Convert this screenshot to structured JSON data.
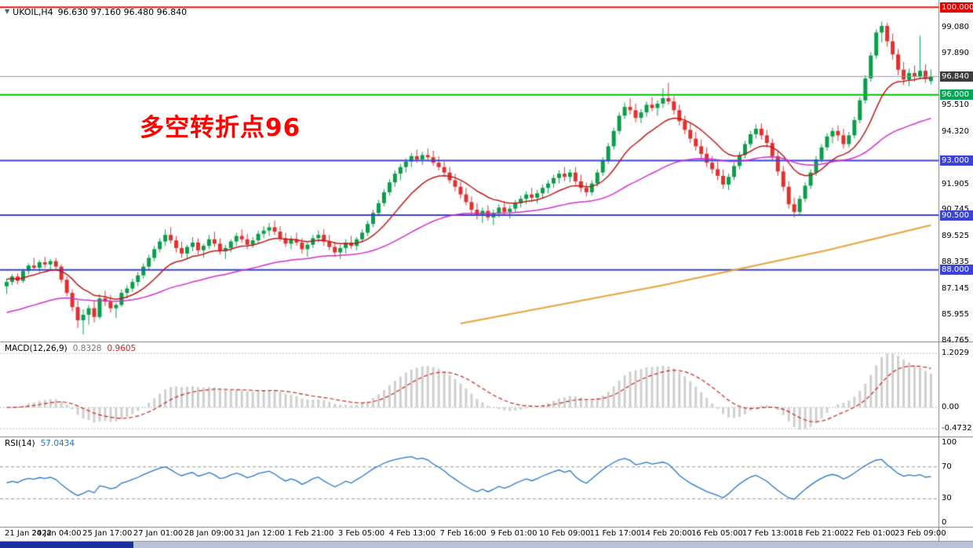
{
  "header": {
    "icon": "▼",
    "symbol_period": "UKOIL,H4",
    "ohlc": "96.630 97.160 96.480 96.840"
  },
  "annotation": {
    "text": "多空转折点96",
    "color": "#ff0000"
  },
  "macd_panel": {
    "label": "MACD(12,26,9)",
    "value_main": "0.8328",
    "value_signal": "0.9605",
    "axis": [
      {
        "text": "1.2029",
        "value": 1.2029
      },
      {
        "text": "0.00",
        "value": 0
      },
      {
        "text": "-0.4732",
        "value": -0.4732
      }
    ]
  },
  "rsi_panel": {
    "label": "RSI(14)",
    "value": "57.0434",
    "axis": [
      {
        "text": "100",
        "value": 100
      },
      {
        "text": "70",
        "value": 70
      },
      {
        "text": "30",
        "value": 30
      },
      {
        "text": "0",
        "value": 0
      }
    ],
    "levels": [
      70,
      30
    ]
  },
  "price_axis": {
    "ticks": [
      99.08,
      97.89,
      95.51,
      94.32,
      91.905,
      90.745,
      89.525,
      88.335,
      87.145,
      85.955,
      84.765
    ],
    "badges": [
      {
        "price": 100.0,
        "bg": "#e00000"
      },
      {
        "price": 96.84,
        "bg": "#3c3c3c"
      },
      {
        "price": 96.0,
        "bg": "#00a651"
      },
      {
        "price": 93.0,
        "bg": "#3a43d6"
      },
      {
        "price": 90.5,
        "bg": "#3a43d6"
      },
      {
        "price": 88.0,
        "bg": "#3a43d6"
      }
    ]
  },
  "taskbar": {
    "left_color": "#1b2f9e",
    "right_color": "#b9c2d6"
  },
  "chart_data": {
    "type": "candlestick",
    "symbol": "UKOIL",
    "timeframe": "H4",
    "ylim": [
      84.43,
      100.36
    ],
    "x_labels": [
      "21 Jan 2022",
      "24 Jan 04:00",
      "25 Jan 17:00",
      "27 Jan 01:00",
      "28 Jan 09:00",
      "31 Jan 12:00",
      "1 Feb 21:00",
      "3 Feb 05:00",
      "4 Feb 13:00",
      "7 Feb 16:00",
      "9 Feb 01:00",
      "10 Feb 09:00",
      "11 Feb 17:00",
      "14 Feb 20:00",
      "16 Feb 05:00",
      "17 Feb 13:00",
      "18 Feb 21:00",
      "22 Feb 01:00",
      "23 Feb 09:00"
    ],
    "hlines": [
      {
        "price": 100.0,
        "color": "#ee1111",
        "width": 2
      },
      {
        "price": 96.0,
        "color": "#00c200",
        "width": 2
      },
      {
        "price": 93.0,
        "color": "#3a43d6",
        "width": 2
      },
      {
        "price": 90.5,
        "color": "#3a43d6",
        "width": 2
      },
      {
        "price": 88.0,
        "color": "#3a43d6",
        "width": 2
      }
    ],
    "bid_line": {
      "price": 96.84,
      "color": "#999999"
    },
    "candle_colors": {
      "up": "#0a9d4b",
      "down": "#e03030"
    },
    "moving_averages": {
      "red": {
        "period": 13,
        "seed": 87.6,
        "color": "#c01818"
      },
      "magenta": {
        "period": 50,
        "seed": 86.0,
        "color": "#d02fd0"
      },
      "orange": {
        "color": "#e8a33a",
        "points": [
          [
            83,
            85.55
          ],
          [
            120,
            87.3
          ],
          [
            150,
            88.9
          ],
          [
            169,
            90.05
          ]
        ]
      }
    },
    "macd": {
      "fast": 12,
      "slow": 26,
      "signal": 9,
      "max": 1.2029,
      "min": -0.4732,
      "hist_color": "#cfcfcf",
      "signal_color": "#cc2222"
    },
    "rsi": {
      "period": 14,
      "color": "#2277cc"
    },
    "candles": [
      [
        87.25,
        87.6,
        86.9,
        87.45
      ],
      [
        87.45,
        87.8,
        87.3,
        87.7
      ],
      [
        87.7,
        87.85,
        87.35,
        87.5
      ],
      [
        87.5,
        88.05,
        87.4,
        87.95
      ],
      [
        87.95,
        88.3,
        87.8,
        88.2
      ],
      [
        88.2,
        88.55,
        88,
        88.1
      ],
      [
        88.1,
        88.45,
        87.9,
        88.35
      ],
      [
        88.35,
        88.6,
        88.1,
        88.25
      ],
      [
        88.25,
        88.5,
        87.95,
        88.4
      ],
      [
        88.4,
        88.55,
        88,
        88.15
      ],
      [
        88.15,
        88.25,
        87.4,
        87.55
      ],
      [
        87.55,
        87.7,
        86.8,
        86.95
      ],
      [
        86.95,
        87.1,
        86.1,
        86.3
      ],
      [
        86.3,
        86.6,
        85.35,
        85.7
      ],
      [
        85.7,
        86.2,
        85.05,
        85.95
      ],
      [
        85.95,
        86.4,
        85.5,
        86.25
      ],
      [
        86.25,
        86.55,
        85.6,
        85.85
      ],
      [
        85.85,
        86.9,
        85.75,
        86.7
      ],
      [
        86.7,
        87.05,
        86.35,
        86.55
      ],
      [
        86.55,
        86.85,
        86.05,
        86.25
      ],
      [
        86.25,
        86.5,
        85.8,
        86.4
      ],
      [
        86.4,
        87.1,
        86.3,
        86.95
      ],
      [
        86.95,
        87.3,
        86.7,
        87.15
      ],
      [
        87.15,
        87.6,
        87,
        87.45
      ],
      [
        87.45,
        87.9,
        87.25,
        87.75
      ],
      [
        87.75,
        88.3,
        87.6,
        88.15
      ],
      [
        88.15,
        88.7,
        88,
        88.55
      ],
      [
        88.55,
        89.1,
        88.4,
        88.95
      ],
      [
        88.95,
        89.45,
        88.8,
        89.3
      ],
      [
        89.3,
        89.85,
        89.1,
        89.6
      ],
      [
        89.6,
        89.95,
        89.2,
        89.35
      ],
      [
        89.35,
        89.55,
        88.8,
        89
      ],
      [
        89,
        89.3,
        88.55,
        88.75
      ],
      [
        88.75,
        89.15,
        88.5,
        89.05
      ],
      [
        89.05,
        89.5,
        88.85,
        89.25
      ],
      [
        89.25,
        89.45,
        88.7,
        88.9
      ],
      [
        88.9,
        89.2,
        88.55,
        89.1
      ],
      [
        89.1,
        89.6,
        88.95,
        89.4
      ],
      [
        89.4,
        89.75,
        89.05,
        89.2
      ],
      [
        89.2,
        89.45,
        88.7,
        88.85
      ],
      [
        88.85,
        89.15,
        88.5,
        89
      ],
      [
        89,
        89.4,
        88.8,
        89.3
      ],
      [
        89.3,
        89.7,
        89.1,
        89.55
      ],
      [
        89.55,
        89.85,
        89.25,
        89.4
      ],
      [
        89.4,
        89.65,
        88.95,
        89.15
      ],
      [
        89.15,
        89.5,
        89,
        89.35
      ],
      [
        89.35,
        89.8,
        89.2,
        89.65
      ],
      [
        89.65,
        90,
        89.45,
        89.8
      ],
      [
        89.8,
        90.15,
        89.55,
        89.95
      ],
      [
        89.95,
        90.25,
        89.6,
        89.75
      ],
      [
        89.75,
        90,
        89.3,
        89.45
      ],
      [
        89.45,
        89.7,
        89.05,
        89.2
      ],
      [
        89.2,
        89.55,
        88.95,
        89.4
      ],
      [
        89.4,
        89.7,
        89.1,
        89.25
      ],
      [
        89.25,
        89.45,
        88.75,
        88.95
      ],
      [
        88.95,
        89.3,
        88.6,
        89.15
      ],
      [
        89.15,
        89.6,
        89,
        89.45
      ],
      [
        89.45,
        89.8,
        89.25,
        89.6
      ],
      [
        89.6,
        89.85,
        89.1,
        89.3
      ],
      [
        89.3,
        89.6,
        88.9,
        89.05
      ],
      [
        89.05,
        89.3,
        88.6,
        88.8
      ],
      [
        88.8,
        89.15,
        88.5,
        89
      ],
      [
        89,
        89.4,
        88.75,
        89.25
      ],
      [
        89.25,
        89.55,
        88.95,
        89.1
      ],
      [
        89.1,
        89.5,
        88.9,
        89.4
      ],
      [
        89.4,
        89.85,
        89.25,
        89.7
      ],
      [
        89.7,
        90.25,
        89.55,
        90.1
      ],
      [
        90.1,
        90.75,
        89.95,
        90.6
      ],
      [
        90.6,
        91.2,
        90.45,
        91.05
      ],
      [
        91.05,
        91.7,
        90.9,
        91.55
      ],
      [
        91.55,
        92.15,
        91.4,
        92
      ],
      [
        92,
        92.55,
        91.8,
        92.4
      ],
      [
        92.4,
        92.85,
        92.1,
        92.7
      ],
      [
        92.7,
        93.1,
        92.45,
        92.95
      ],
      [
        92.95,
        93.35,
        92.7,
        93.2
      ],
      [
        93.2,
        93.5,
        92.9,
        93.05
      ],
      [
        93.05,
        93.4,
        92.8,
        93.25
      ],
      [
        93.25,
        93.55,
        93,
        93.15
      ],
      [
        93.15,
        93.45,
        92.75,
        92.9
      ],
      [
        92.9,
        93.2,
        92.55,
        92.7
      ],
      [
        92.7,
        92.95,
        92.25,
        92.45
      ],
      [
        92.45,
        92.7,
        91.95,
        92.1
      ],
      [
        92.1,
        92.4,
        91.6,
        91.8
      ],
      [
        91.8,
        92.05,
        91.25,
        91.45
      ],
      [
        91.45,
        91.75,
        90.95,
        91.1
      ],
      [
        91.1,
        91.35,
        90.55,
        90.75
      ],
      [
        90.75,
        91.05,
        90.3,
        90.5
      ],
      [
        90.5,
        90.85,
        90.15,
        90.7
      ],
      [
        90.7,
        90.95,
        90.25,
        90.4
      ],
      [
        90.4,
        90.75,
        90.05,
        90.6
      ],
      [
        90.6,
        91,
        90.4,
        90.85
      ],
      [
        90.85,
        91.15,
        90.5,
        90.65
      ],
      [
        90.65,
        90.95,
        90.35,
        90.8
      ],
      [
        90.8,
        91.2,
        90.6,
        91.05
      ],
      [
        91.05,
        91.4,
        90.85,
        91.25
      ],
      [
        91.25,
        91.6,
        91,
        91.45
      ],
      [
        91.45,
        91.75,
        91.1,
        91.3
      ],
      [
        91.3,
        91.65,
        91.05,
        91.5
      ],
      [
        91.5,
        91.9,
        91.3,
        91.75
      ],
      [
        91.75,
        92.1,
        91.5,
        91.95
      ],
      [
        91.95,
        92.35,
        91.75,
        92.2
      ],
      [
        92.2,
        92.55,
        91.95,
        92.4
      ],
      [
        92.4,
        92.7,
        92.05,
        92.25
      ],
      [
        92.25,
        92.6,
        92,
        92.45
      ],
      [
        92.45,
        92.7,
        91.9,
        92.05
      ],
      [
        92.05,
        92.35,
        91.55,
        91.75
      ],
      [
        91.75,
        92,
        91.35,
        91.55
      ],
      [
        91.55,
        92.1,
        91.4,
        91.95
      ],
      [
        91.95,
        92.6,
        91.8,
        92.45
      ],
      [
        92.45,
        93.15,
        92.3,
        93
      ],
      [
        93,
        93.8,
        92.85,
        93.65
      ],
      [
        93.65,
        94.5,
        93.5,
        94.35
      ],
      [
        94.35,
        95.2,
        94.2,
        95.05
      ],
      [
        95.05,
        95.65,
        94.9,
        95.45
      ],
      [
        95.45,
        95.85,
        95.1,
        95.3
      ],
      [
        95.3,
        95.6,
        94.75,
        94.95
      ],
      [
        94.95,
        95.35,
        94.7,
        95.2
      ],
      [
        95.2,
        95.7,
        95,
        95.55
      ],
      [
        95.55,
        95.9,
        95.25,
        95.4
      ],
      [
        95.4,
        95.75,
        95.05,
        95.6
      ],
      [
        95.6,
        96.3,
        95.4,
        95.85
      ],
      [
        95.85,
        96.55,
        95.55,
        95.7
      ],
      [
        95.7,
        95.95,
        95.1,
        95.3
      ],
      [
        95.3,
        95.55,
        94.6,
        94.8
      ],
      [
        94.8,
        95.05,
        94.2,
        94.4
      ],
      [
        94.4,
        94.7,
        93.8,
        94
      ],
      [
        94,
        94.3,
        93.45,
        93.65
      ],
      [
        93.65,
        93.95,
        93.1,
        93.3
      ],
      [
        93.3,
        93.6,
        92.7,
        92.9
      ],
      [
        92.9,
        93.2,
        92.4,
        92.6
      ],
      [
        92.6,
        92.95,
        92.1,
        92.3
      ],
      [
        92.3,
        92.6,
        91.7,
        91.9
      ],
      [
        91.9,
        92.4,
        91.65,
        92.25
      ],
      [
        92.25,
        92.9,
        92.1,
        92.75
      ],
      [
        92.75,
        93.4,
        92.6,
        93.25
      ],
      [
        93.25,
        93.9,
        93.1,
        93.75
      ],
      [
        93.75,
        94.35,
        93.6,
        94.2
      ],
      [
        94.2,
        94.65,
        94,
        94.45
      ],
      [
        94.45,
        94.7,
        93.95,
        94.15
      ],
      [
        94.15,
        94.4,
        93.6,
        93.8
      ],
      [
        93.8,
        94,
        93,
        93.2
      ],
      [
        93.2,
        93.45,
        92.3,
        92.5
      ],
      [
        92.5,
        92.75,
        91.6,
        91.8
      ],
      [
        91.8,
        92.05,
        90.8,
        91
      ],
      [
        91,
        91.3,
        90.4,
        90.65
      ],
      [
        90.65,
        91.4,
        90.5,
        91.25
      ],
      [
        91.25,
        92,
        91.1,
        91.85
      ],
      [
        91.85,
        92.6,
        91.7,
        92.45
      ],
      [
        92.45,
        93.2,
        92.3,
        93.05
      ],
      [
        93.05,
        93.75,
        92.9,
        93.6
      ],
      [
        93.6,
        94.25,
        93.45,
        94.1
      ],
      [
        94.1,
        94.5,
        93.8,
        94.35
      ],
      [
        94.35,
        94.6,
        93.9,
        94.15
      ],
      [
        94.15,
        94.45,
        93.55,
        93.75
      ],
      [
        93.75,
        94.3,
        93.6,
        94.15
      ],
      [
        94.15,
        95,
        94,
        94.85
      ],
      [
        94.85,
        95.9,
        94.7,
        95.75
      ],
      [
        95.75,
        96.9,
        95.6,
        96.75
      ],
      [
        96.75,
        97.95,
        96.6,
        97.8
      ],
      [
        97.8,
        99,
        97.65,
        98.85
      ],
      [
        98.85,
        99.35,
        98.4,
        99.15
      ],
      [
        99.15,
        99.3,
        98.2,
        98.45
      ],
      [
        98.45,
        98.8,
        97.6,
        97.85
      ],
      [
        97.85,
        98.1,
        96.9,
        97.15
      ],
      [
        97.15,
        97.5,
        96.45,
        96.7
      ],
      [
        96.7,
        97.2,
        96.4,
        97
      ],
      [
        97,
        97.35,
        96.6,
        96.85
      ],
      [
        96.85,
        98.7,
        96.7,
        97.1
      ],
      [
        97.1,
        97.4,
        96.55,
        96.75
      ],
      [
        96.63,
        97.16,
        96.48,
        96.84
      ]
    ]
  }
}
